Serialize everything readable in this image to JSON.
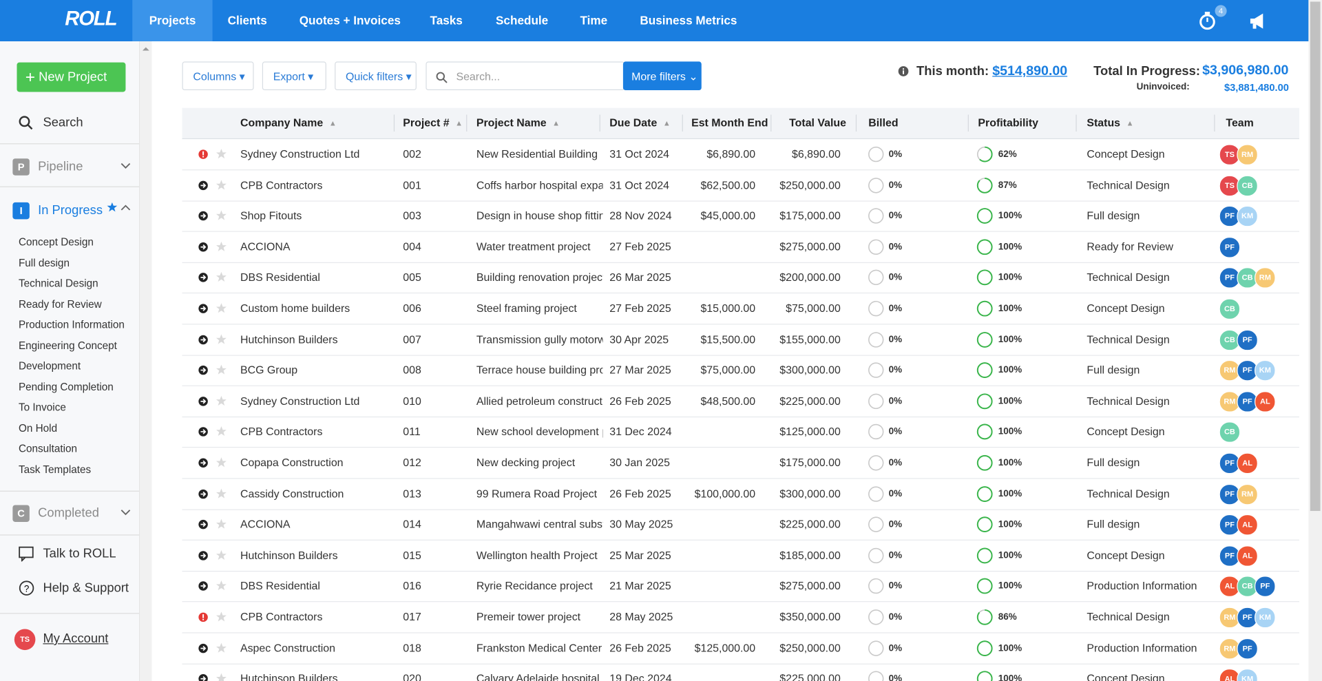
{
  "nav": {
    "logo": "ROLL",
    "items": [
      "Projects",
      "Clients",
      "Quotes + Invoices",
      "Tasks",
      "Schedule",
      "Time",
      "Business Metrics"
    ],
    "timer_badge": "4"
  },
  "sidebar": {
    "new_project": "New Project",
    "search": "Search",
    "pipeline": {
      "badge": "P",
      "label": "Pipeline"
    },
    "in_progress": {
      "badge": "I",
      "label": "In Progress",
      "items": [
        "Concept Design",
        "Full design",
        "Technical Design",
        "Ready for Review",
        "Production Information",
        "Engineering Concept",
        "Development",
        "Pending Completion",
        "To Invoice",
        "On Hold",
        "Consultation",
        "Task Templates"
      ]
    },
    "completed": {
      "badge": "C",
      "label": "Completed"
    },
    "talk": "Talk to ROLL",
    "help": "Help & Support",
    "account": {
      "initials": "TS",
      "label": "My Account"
    }
  },
  "toolbar": {
    "columns": "Columns",
    "export": "Export",
    "quick_filters": "Quick filters",
    "search_placeholder": "Search...",
    "more_filters": "More filters"
  },
  "summary": {
    "this_month_label": "This month:",
    "this_month": "$514,890.00",
    "total_label": "Total In Progress:",
    "total": "$3,906,980.00",
    "uninvoiced_label": "Uninvoiced:",
    "uninvoiced": "$3,881,480.00"
  },
  "team_colors": {
    "TS": "#e5484d",
    "RM": "#f7c873",
    "CB": "#6ed3ad",
    "PF": "#1f6fc5",
    "KM": "#a8d4f5",
    "AL": "#f05634"
  },
  "table": {
    "headers": [
      "Company Name",
      "Project #",
      "Project Name",
      "Due Date",
      "Est Month End",
      "Total Value",
      "Billed",
      "Profitability",
      "Status",
      "Team"
    ],
    "rows": [
      {
        "icon": "alert",
        "cells": [
          "Sydney Construction Ltd",
          "002",
          "New Residential Building",
          "31 Oct 2024",
          "$6,890.00",
          "$6,890.00",
          "0%",
          "62%",
          "Concept Design"
        ],
        "team": [
          "TS",
          "RM"
        ]
      },
      {
        "icon": "open",
        "cells": [
          "CPB Contractors",
          "001",
          "Coffs harbor hospital expan",
          "31 Oct 2024",
          "$62,500.00",
          "$250,000.00",
          "0%",
          "87%",
          "Technical Design"
        ],
        "team": [
          "TS",
          "CB"
        ]
      },
      {
        "icon": "open",
        "cells": [
          "Shop Fitouts",
          "003",
          "Design in house shop fitting",
          "28 Nov 2024",
          "$45,000.00",
          "$175,000.00",
          "0%",
          "100%",
          "Full design"
        ],
        "team": [
          "PF",
          "KM"
        ]
      },
      {
        "icon": "open",
        "cells": [
          "ACCIONA",
          "004",
          "Water treatment project",
          "27 Feb 2025",
          null,
          "$275,000.00",
          "0%",
          "100%",
          "Ready for Review"
        ],
        "team": [
          "PF"
        ]
      },
      {
        "icon": "open",
        "cells": [
          "DBS Residential",
          "005",
          "Building renovation project",
          "26 Mar 2025",
          null,
          "$200,000.00",
          "0%",
          "100%",
          "Technical Design"
        ],
        "team": [
          "PF",
          "CB",
          "RM"
        ]
      },
      {
        "icon": "open",
        "cells": [
          "Custom home builders",
          "006",
          "Steel framing project",
          "27 Feb 2025",
          "$15,000.00",
          "$75,000.00",
          "0%",
          "100%",
          "Concept Design"
        ],
        "team": [
          "CB"
        ]
      },
      {
        "icon": "open",
        "cells": [
          "Hutchinson Builders",
          "007",
          "Transmission gully motorwa",
          "30 Apr 2025",
          "$15,500.00",
          "$155,000.00",
          "0%",
          "100%",
          "Technical Design"
        ],
        "team": [
          "CB",
          "PF"
        ]
      },
      {
        "icon": "open",
        "cells": [
          "BCG Group",
          "008",
          "Terrace house building proj",
          "27 Mar 2025",
          "$75,000.00",
          "$300,000.00",
          "0%",
          "100%",
          "Full design"
        ],
        "team": [
          "RM",
          "PF",
          "KM"
        ]
      },
      {
        "icon": "open",
        "cells": [
          "Sydney Construction Ltd",
          "010",
          "Allied petroleum constructio",
          "26 Feb 2025",
          "$48,500.00",
          "$225,000.00",
          "0%",
          "100%",
          "Technical Design"
        ],
        "team": [
          "RM",
          "PF",
          "AL"
        ]
      },
      {
        "icon": "open",
        "cells": [
          "CPB Contractors",
          "011",
          "New school development p",
          "31 Dec 2024",
          null,
          "$125,000.00",
          "0%",
          "100%",
          "Concept Design"
        ],
        "team": [
          "CB"
        ]
      },
      {
        "icon": "open",
        "cells": [
          "Copapa Construction",
          "012",
          "New decking project",
          "30 Jan 2025",
          null,
          "$175,000.00",
          "0%",
          "100%",
          "Full design"
        ],
        "team": [
          "PF",
          "AL"
        ]
      },
      {
        "icon": "open",
        "cells": [
          "Cassidy Construction",
          "013",
          "99 Rumera Road Project",
          "26 Feb 2025",
          "$100,000.00",
          "$300,000.00",
          "0%",
          "100%",
          "Technical Design"
        ],
        "team": [
          "PF",
          "RM"
        ]
      },
      {
        "icon": "open",
        "cells": [
          "ACCIONA",
          "014",
          "Mangahwawi central substa",
          "30 May 2025",
          null,
          "$225,000.00",
          "0%",
          "100%",
          "Full design"
        ],
        "team": [
          "PF",
          "AL"
        ]
      },
      {
        "icon": "open",
        "cells": [
          "Hutchinson Builders",
          "015",
          "Wellington health Project",
          "25 Mar 2025",
          null,
          "$185,000.00",
          "0%",
          "100%",
          "Concept Design"
        ],
        "team": [
          "PF",
          "AL"
        ]
      },
      {
        "icon": "open",
        "cells": [
          "DBS Residential",
          "016",
          "Ryrie Recidance project",
          "21 Mar 2025",
          null,
          "$275,000.00",
          "0%",
          "100%",
          "Production Information"
        ],
        "team": [
          "AL",
          "CB",
          "PF"
        ]
      },
      {
        "icon": "alert",
        "cells": [
          "CPB Contractors",
          "017",
          "Premeir tower project",
          "28 May 2025",
          null,
          "$350,000.00",
          "0%",
          "86%",
          "Technical Design"
        ],
        "team": [
          "RM",
          "PF",
          "KM"
        ]
      },
      {
        "icon": "open",
        "cells": [
          "Aspec Construction",
          "018",
          "Frankston Medical Center F",
          "26 Feb 2025",
          "$125,000.00",
          "$250,000.00",
          "0%",
          "100%",
          "Production Information"
        ],
        "team": [
          "RM",
          "PF"
        ]
      },
      {
        "icon": "open",
        "cells": [
          "Hutchinson Builders",
          "020",
          "Calvary Adelaide hospital p",
          "19 Dec 2024",
          null,
          "$225,000.00",
          "0%",
          "100%",
          "Concept Design"
        ],
        "team": [
          "AL",
          "KM"
        ]
      }
    ]
  }
}
